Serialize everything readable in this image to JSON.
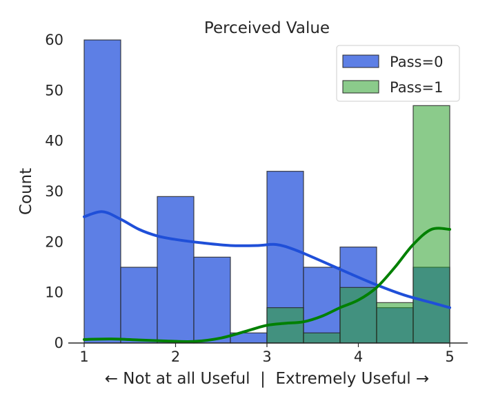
{
  "chart_data": {
    "type": "histogram",
    "title": "Perceived Value",
    "xlabel": "← Not at all Useful  |  Extremely Useful →",
    "ylabel": "Count",
    "xlim": [
      0.9,
      5.1
    ],
    "ylim": [
      0,
      60
    ],
    "xticks": [
      1,
      2,
      3,
      4,
      5
    ],
    "yticks": [
      0,
      10,
      20,
      30,
      40,
      50,
      60
    ],
    "bin_edges": [
      1.0,
      1.4,
      1.8,
      2.2,
      2.6,
      3.0,
      3.4,
      3.8,
      4.2,
      4.6,
      5.0
    ],
    "series": [
      {
        "name": "Pass=0",
        "color": "#4169e1",
        "kde_color": "#1f4fd8",
        "values": [
          60,
          15,
          29,
          17,
          2,
          34,
          15,
          19,
          7,
          15
        ],
        "kde": [
          [
            1.0,
            25
          ],
          [
            1.2,
            26
          ],
          [
            1.4,
            24.5
          ],
          [
            1.6,
            22.5
          ],
          [
            1.8,
            21.2
          ],
          [
            2.0,
            20.5
          ],
          [
            2.3,
            19.8
          ],
          [
            2.6,
            19.3
          ],
          [
            2.9,
            19.3
          ],
          [
            3.1,
            19.5
          ],
          [
            3.3,
            18.5
          ],
          [
            3.6,
            16.2
          ],
          [
            3.9,
            13.8
          ],
          [
            4.2,
            11.5
          ],
          [
            4.5,
            9.5
          ],
          [
            4.8,
            8
          ],
          [
            5.0,
            7
          ]
        ]
      },
      {
        "name": "Pass=1",
        "color": "#2ca02c",
        "kde_color": "#008000",
        "values": [
          0,
          0,
          0,
          0,
          0,
          7,
          2,
          11,
          8,
          47
        ],
        "kde": [
          [
            1.0,
            0.7
          ],
          [
            1.3,
            0.8
          ],
          [
            1.6,
            0.6
          ],
          [
            1.9,
            0.4
          ],
          [
            2.2,
            0.3
          ],
          [
            2.5,
            1
          ],
          [
            2.8,
            2.5
          ],
          [
            3.0,
            3.5
          ],
          [
            3.2,
            3.9
          ],
          [
            3.4,
            4.2
          ],
          [
            3.6,
            5.3
          ],
          [
            3.8,
            7
          ],
          [
            4.0,
            8.5
          ],
          [
            4.2,
            11
          ],
          [
            4.4,
            15
          ],
          [
            4.6,
            19.5
          ],
          [
            4.8,
            22.5
          ],
          [
            5.0,
            22.5
          ]
        ]
      }
    ],
    "legend": {
      "position": "top-right",
      "entries": [
        "Pass=0",
        "Pass=1"
      ]
    }
  }
}
